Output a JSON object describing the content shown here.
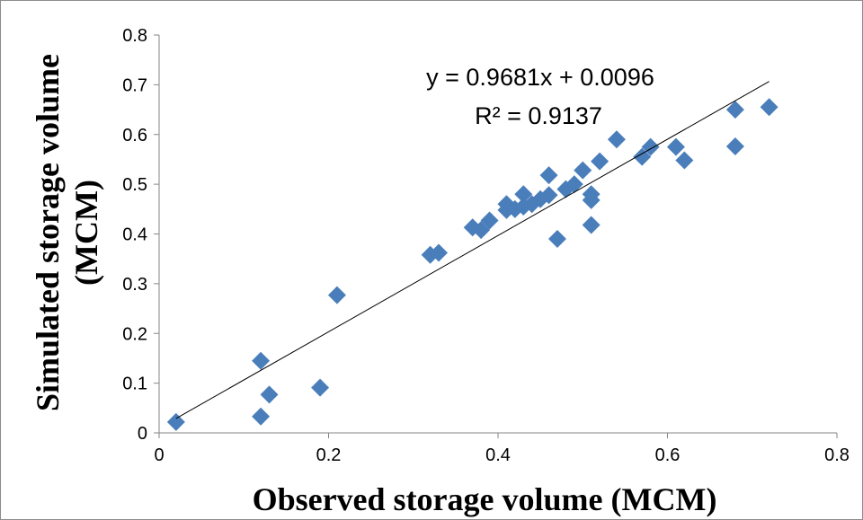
{
  "chart_data": {
    "type": "scatter",
    "xlabel": "Observed storage volume (MCM)",
    "ylabel_line1": "Simulated storage volume",
    "ylabel_line2": "(MCM)",
    "xlim": [
      0,
      0.8
    ],
    "ylim": [
      0,
      0.8
    ],
    "x_ticks": [
      0,
      0.2,
      0.4,
      0.6,
      0.8
    ],
    "x_tick_labels": [
      "0",
      "0.2",
      "0.4",
      "0.6",
      "0.8"
    ],
    "y_ticks": [
      0,
      0.1,
      0.2,
      0.3,
      0.4,
      0.5,
      0.6,
      0.7,
      0.8
    ],
    "y_tick_labels": [
      "0",
      "0.1",
      "0.2",
      "0.3",
      "0.4",
      "0.5",
      "0.6",
      "0.7",
      "0.8"
    ],
    "grid": false,
    "legend": "none",
    "marker": "diamond",
    "marker_color": "#4a7ebb",
    "trendline": {
      "slope": 0.9681,
      "intercept": 0.0096,
      "x_range": [
        0.02,
        0.72
      ],
      "equation": "y = 0.9681x + 0.0096",
      "r_squared": "R² = 0.9137"
    },
    "series": [
      {
        "x": [
          0.02,
          0.12,
          0.12,
          0.13,
          0.19,
          0.21,
          0.32,
          0.33,
          0.37,
          0.38,
          0.39,
          0.41,
          0.41,
          0.42,
          0.43,
          0.43,
          0.44,
          0.45,
          0.46,
          0.46,
          0.47,
          0.48,
          0.49,
          0.5,
          0.51,
          0.51,
          0.51,
          0.52,
          0.54,
          0.57,
          0.58,
          0.61,
          0.62,
          0.68,
          0.68,
          0.72
        ],
        "y": [
          0.022,
          0.145,
          0.033,
          0.077,
          0.091,
          0.277,
          0.358,
          0.362,
          0.413,
          0.408,
          0.427,
          0.46,
          0.448,
          0.45,
          0.48,
          0.455,
          0.46,
          0.47,
          0.518,
          0.478,
          0.39,
          0.49,
          0.5,
          0.528,
          0.48,
          0.468,
          0.418,
          0.546,
          0.59,
          0.555,
          0.575,
          0.575,
          0.548,
          0.65,
          0.576,
          0.655
        ]
      }
    ]
  }
}
